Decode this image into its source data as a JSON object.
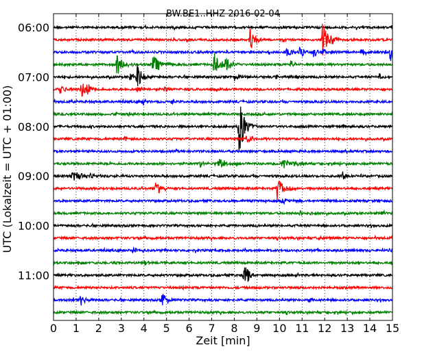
{
  "chart_data": {
    "type": "line",
    "title": "BW.BE1..HHZ 2016-02-04",
    "xlabel": "Zeit  [min]",
    "ylabel": "UTC (Lokalzeit = UTC + 01:00)",
    "xlim": [
      0,
      15
    ],
    "x_ticks": [
      0,
      1,
      2,
      3,
      4,
      5,
      6,
      7,
      8,
      9,
      10,
      11,
      12,
      13,
      14,
      15
    ],
    "grid": "vertical-dotted",
    "trace_interval_min": 15,
    "trace_colors": [
      "#000000",
      "#ff0000",
      "#0000ff",
      "#008000"
    ],
    "y_tick_labels": [
      {
        "label": "06:00",
        "trace": 0
      },
      {
        "label": "07:00",
        "trace": 4
      },
      {
        "label": "08:00",
        "trace": 8
      },
      {
        "label": "09:00",
        "trace": 12
      },
      {
        "label": "10:00",
        "trace": 16
      },
      {
        "label": "11:00",
        "trace": 20
      }
    ],
    "traces": [
      {
        "start": "06:00",
        "events": []
      },
      {
        "start": "06:15",
        "events": [
          {
            "t": 8.7,
            "amp": 1.2,
            "dur": 0.3
          },
          {
            "t": 11.9,
            "amp": 1.6,
            "dur": 0.5
          },
          {
            "t": 12.2,
            "amp": 0.3,
            "dur": 0.4
          }
        ]
      },
      {
        "start": "06:30",
        "events": [
          {
            "t": 10.3,
            "amp": 0.4,
            "dur": 0.6
          },
          {
            "t": 10.9,
            "amp": 0.6,
            "dur": 0.3
          },
          {
            "t": 11.5,
            "amp": 0.5,
            "dur": 0.3
          },
          {
            "t": 11.9,
            "amp": 0.45,
            "dur": 0.4
          },
          {
            "t": 13.6,
            "amp": 0.3,
            "dur": 0.5
          },
          {
            "t": 14.9,
            "amp": 1.3,
            "dur": 0.15
          }
        ]
      },
      {
        "start": "06:45",
        "events": [
          {
            "t": 2.8,
            "amp": 1.0,
            "dur": 0.4
          },
          {
            "t": 4.4,
            "amp": 1.0,
            "dur": 0.5
          },
          {
            "t": 7.1,
            "amp": 1.2,
            "dur": 0.5
          },
          {
            "t": 7.6,
            "amp": 0.9,
            "dur": 0.3
          },
          {
            "t": 10.5,
            "amp": 0.4,
            "dur": 0.3
          }
        ]
      },
      {
        "start": "07:00",
        "events": [
          {
            "t": 3.4,
            "amp": 0.4,
            "dur": 0.4
          },
          {
            "t": 3.7,
            "amp": 1.3,
            "dur": 0.3
          },
          {
            "t": 8.0,
            "amp": 0.3,
            "dur": 0.6
          },
          {
            "t": 9.8,
            "amp": 0.25,
            "dur": 0.6
          },
          {
            "t": 14.4,
            "amp": 0.3,
            "dur": 0.3
          }
        ]
      },
      {
        "start": "07:15",
        "events": [
          {
            "t": 0.3,
            "amp": 0.5,
            "dur": 0.4
          },
          {
            "t": 1.2,
            "amp": 1.1,
            "dur": 0.3
          },
          {
            "t": 1.5,
            "amp": 0.9,
            "dur": 0.2
          },
          {
            "t": 3.7,
            "amp": 0.4,
            "dur": 0.3
          },
          {
            "t": 4.9,
            "amp": 0.25,
            "dur": 0.4
          }
        ]
      },
      {
        "start": "07:30",
        "events": [
          {
            "t": 3.9,
            "amp": 0.4,
            "dur": 0.3
          },
          {
            "t": 5.2,
            "amp": 0.3,
            "dur": 0.3
          }
        ]
      },
      {
        "start": "07:45",
        "events": [
          {
            "t": 3.3,
            "amp": 0.2,
            "dur": 0.2
          }
        ]
      },
      {
        "start": "08:00",
        "events": [
          {
            "t": 8.2,
            "amp": 2.8,
            "dur": 0.4
          },
          {
            "t": 12.8,
            "amp": 0.2,
            "dur": 0.3
          }
        ]
      },
      {
        "start": "08:15",
        "events": [
          {
            "t": 3.1,
            "amp": 0.3,
            "dur": 0.3
          },
          {
            "t": 8.5,
            "amp": 0.6,
            "dur": 0.4
          }
        ]
      },
      {
        "start": "08:30",
        "events": []
      },
      {
        "start": "08:45",
        "events": [
          {
            "t": 6.5,
            "amp": 0.4,
            "dur": 0.4
          },
          {
            "t": 7.3,
            "amp": 0.6,
            "dur": 0.4
          },
          {
            "t": 10.1,
            "amp": 0.6,
            "dur": 0.5
          },
          {
            "t": 10.8,
            "amp": 0.3,
            "dur": 0.3
          }
        ]
      },
      {
        "start": "09:00",
        "events": [
          {
            "t": 0.8,
            "amp": 0.4,
            "dur": 1.5
          },
          {
            "t": 12.8,
            "amp": 0.4,
            "dur": 0.3
          }
        ]
      },
      {
        "start": "09:15",
        "events": [
          {
            "t": 4.5,
            "amp": 0.7,
            "dur": 0.4
          },
          {
            "t": 9.9,
            "amp": 1.0,
            "dur": 0.5
          }
        ]
      },
      {
        "start": "09:30",
        "events": [
          {
            "t": 10.1,
            "amp": 0.5,
            "dur": 0.3
          }
        ]
      },
      {
        "start": "09:45",
        "events": [
          {
            "t": 10.9,
            "amp": 0.3,
            "dur": 0.5
          },
          {
            "t": 14.5,
            "amp": 0.2,
            "dur": 0.4
          }
        ]
      },
      {
        "start": "10:00",
        "events": []
      },
      {
        "start": "10:15",
        "events": [
          {
            "t": 11.7,
            "amp": 0.2,
            "dur": 0.3
          }
        ]
      },
      {
        "start": "10:30",
        "events": [
          {
            "t": 3.5,
            "amp": 0.3,
            "dur": 0.5
          },
          {
            "t": 14.9,
            "amp": 0.4,
            "dur": 0.2
          }
        ]
      },
      {
        "start": "10:45",
        "events": [
          {
            "t": 1.0,
            "amp": 0.2,
            "dur": 0.4
          },
          {
            "t": 4.0,
            "amp": 0.2,
            "dur": 0.4
          }
        ]
      },
      {
        "start": "11:00",
        "events": [
          {
            "t": 8.4,
            "amp": 1.0,
            "dur": 0.5
          }
        ]
      },
      {
        "start": "11:15",
        "events": []
      },
      {
        "start": "11:30",
        "events": [
          {
            "t": 1.2,
            "amp": 0.6,
            "dur": 0.3
          },
          {
            "t": 4.8,
            "amp": 0.7,
            "dur": 0.4
          },
          {
            "t": 11.3,
            "amp": 0.2,
            "dur": 0.3
          }
        ]
      },
      {
        "start": "11:45",
        "events": []
      }
    ]
  }
}
